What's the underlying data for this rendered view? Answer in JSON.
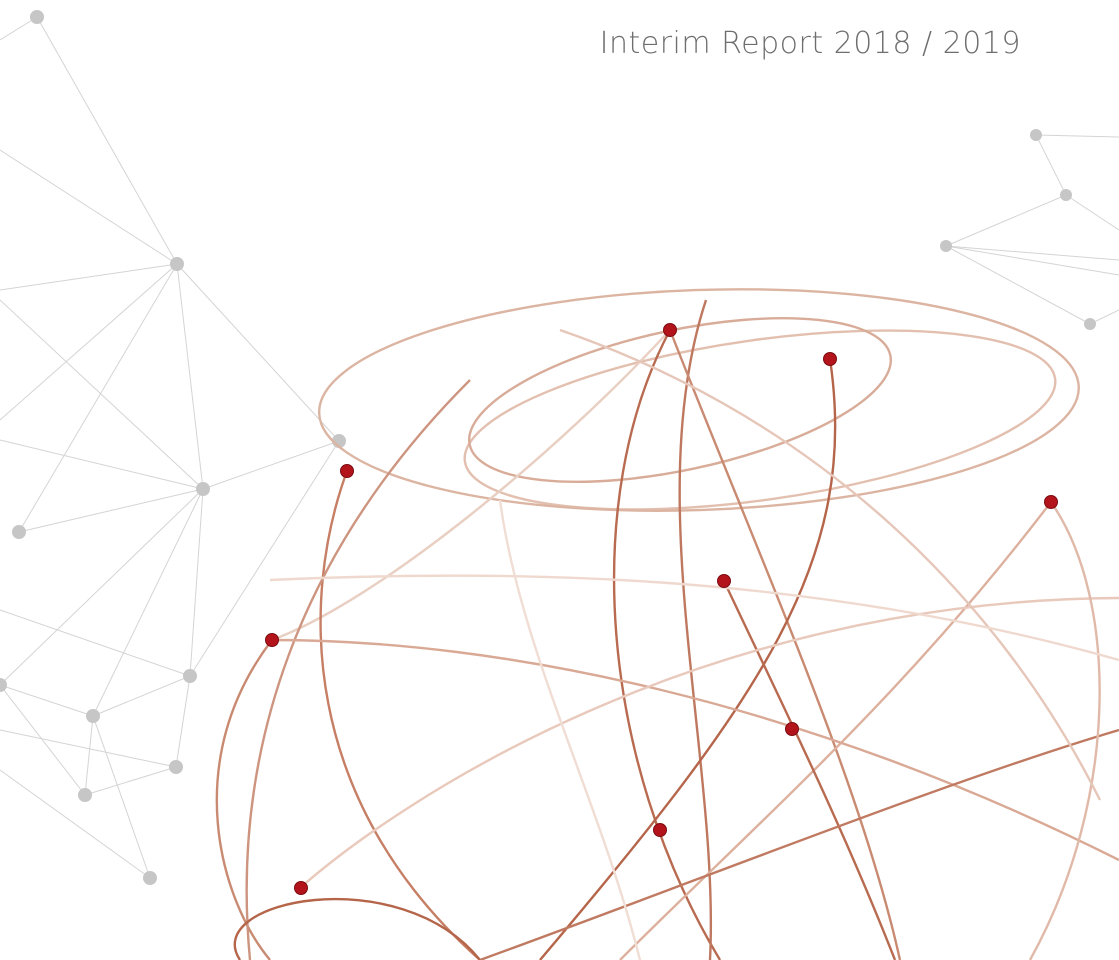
{
  "header": {
    "title": "Interim Report 2018 / 2019"
  }
}
